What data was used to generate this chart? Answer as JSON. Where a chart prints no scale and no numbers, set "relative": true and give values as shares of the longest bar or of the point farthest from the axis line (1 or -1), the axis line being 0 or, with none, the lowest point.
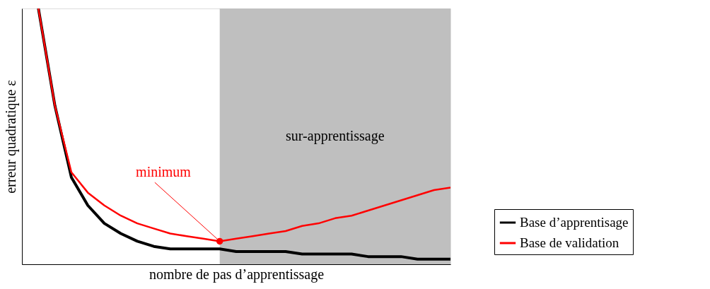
{
  "chart_data": {
    "type": "line",
    "relative": true,
    "xlabel": "nombre de pas d’apprentissage",
    "ylabel": "erreur quadratique ε",
    "categories": [
      null,
      null,
      null,
      null,
      null,
      null,
      null,
      null,
      null,
      null,
      null,
      null,
      null,
      null,
      null,
      null,
      null,
      null,
      null,
      null,
      null,
      null,
      null,
      null,
      null,
      null,
      null
    ],
    "grid": false,
    "legend": "bottom right",
    "marker": "none",
    "line_style": "solid",
    "series": [
      {
        "name": "Base d’apprentisage",
        "color": "#000000",
        "values": [
          null,
          1.0,
          0.62,
          0.34,
          0.23,
          0.16,
          0.12,
          0.09,
          0.07,
          0.06,
          0.06,
          0.06,
          0.06,
          0.05,
          0.05,
          0.05,
          0.05,
          0.04,
          0.04,
          0.04,
          0.04,
          0.03,
          0.03,
          0.03,
          0.02,
          0.02,
          0.02
        ]
      },
      {
        "name": "Base de validation",
        "color": "#ff0000",
        "values": [
          null,
          1.0,
          0.62,
          0.36,
          0.28,
          0.23,
          0.19,
          0.16,
          0.14,
          0.12,
          0.11,
          0.1,
          0.09,
          0.1,
          0.11,
          0.12,
          0.13,
          0.15,
          0.16,
          0.18,
          0.19,
          0.21,
          0.23,
          0.25,
          0.27,
          0.29,
          0.3
        ]
      }
    ],
    "annotations": [
      "minimum",
      "sur-apprentissage"
    ]
  }
}
